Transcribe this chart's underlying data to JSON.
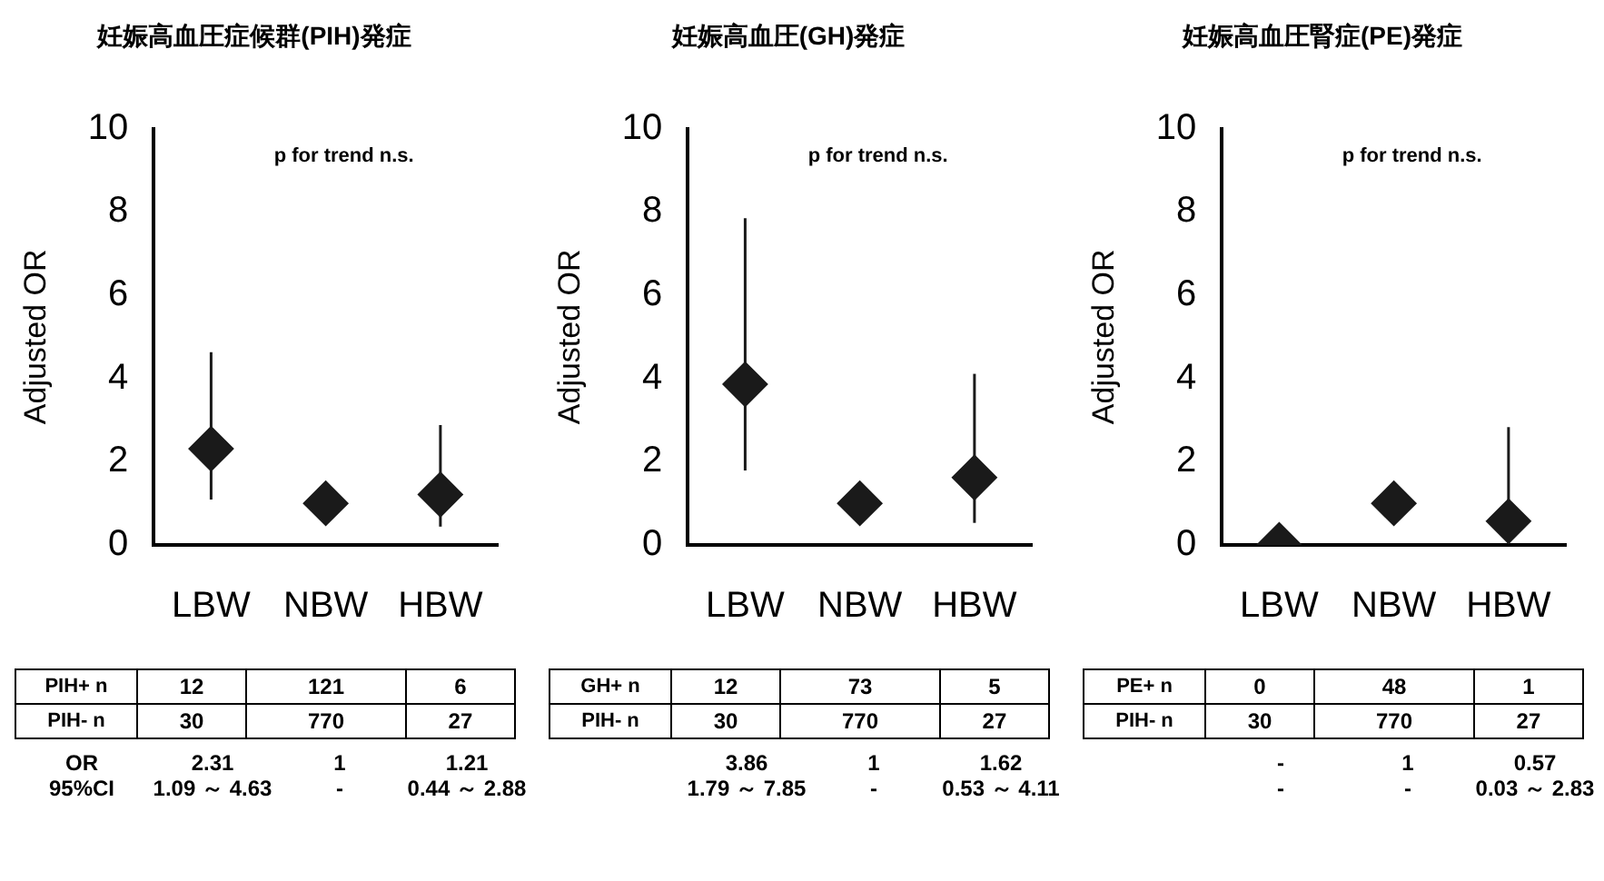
{
  "chart_data": [
    {
      "type": "scatter",
      "title": "妊娠高血圧症候群(PIH)発症",
      "ylabel": "Adjusted OR",
      "categories": [
        "LBW",
        "NBW",
        "HBW"
      ],
      "values": [
        2.31,
        1,
        1.21
      ],
      "errors": [
        [
          1.09,
          4.63
        ],
        null,
        [
          0.44,
          2.88
        ]
      ],
      "value_labels": [
        "2.31",
        "1",
        "1.21"
      ],
      "color": "#1a1a1a",
      "marker": "diamond",
      "ylim": [
        0,
        10
      ],
      "yticks": [
        0,
        2,
        4,
        6,
        8,
        10
      ],
      "annotations": [
        "p for trend n.s.",
        "PIH+ n",
        "12",
        "121",
        "6",
        "PIH- n",
        "30",
        "770",
        "27",
        "OR",
        "95%CI",
        "1.09 ～ 4.63",
        "-",
        "0.44 ～ 2.88"
      ]
    },
    {
      "type": "scatter",
      "title": "妊娠高血圧(GH)発症",
      "ylabel": "Adjusted OR",
      "categories": [
        "LBW",
        "NBW",
        "HBW"
      ],
      "values": [
        3.86,
        1,
        1.62
      ],
      "errors": [
        [
          1.79,
          7.85
        ],
        null,
        [
          0.53,
          4.11
        ]
      ],
      "value_labels": [
        "3.86",
        "1",
        "1.62"
      ],
      "color": "#1a1a1a",
      "marker": "diamond",
      "ylim": [
        0,
        10
      ],
      "yticks": [
        0,
        2,
        4,
        6,
        8,
        10
      ],
      "annotations": [
        "p for trend n.s.",
        "GH+ n",
        "12",
        "73",
        "5",
        "PIH- n",
        "30",
        "770",
        "27",
        "1.79 ～ 7.85",
        "-",
        "0.53 ～ 4.11"
      ]
    },
    {
      "type": "scatter",
      "title": "妊娠高血圧腎症(PE)発症",
      "ylabel": "Adjusted OR",
      "categories": [
        "LBW",
        "NBW",
        "HBW"
      ],
      "values": [
        0,
        1,
        0.57
      ],
      "errors": [
        null,
        null,
        [
          0.03,
          2.83
        ]
      ],
      "value_labels": [
        "-",
        "1",
        "0.57"
      ],
      "color": "#1a1a1a",
      "marker": "diamond",
      "ylim": [
        0,
        10
      ],
      "yticks": [
        0,
        2,
        4,
        6,
        8,
        10
      ],
      "annotations": [
        "p for trend n.s.",
        "PE+ n",
        "0",
        "48",
        "1",
        "PIH- n",
        "30",
        "770",
        "27",
        "-",
        "-",
        "0.03 ～ 2.83"
      ]
    }
  ]
}
